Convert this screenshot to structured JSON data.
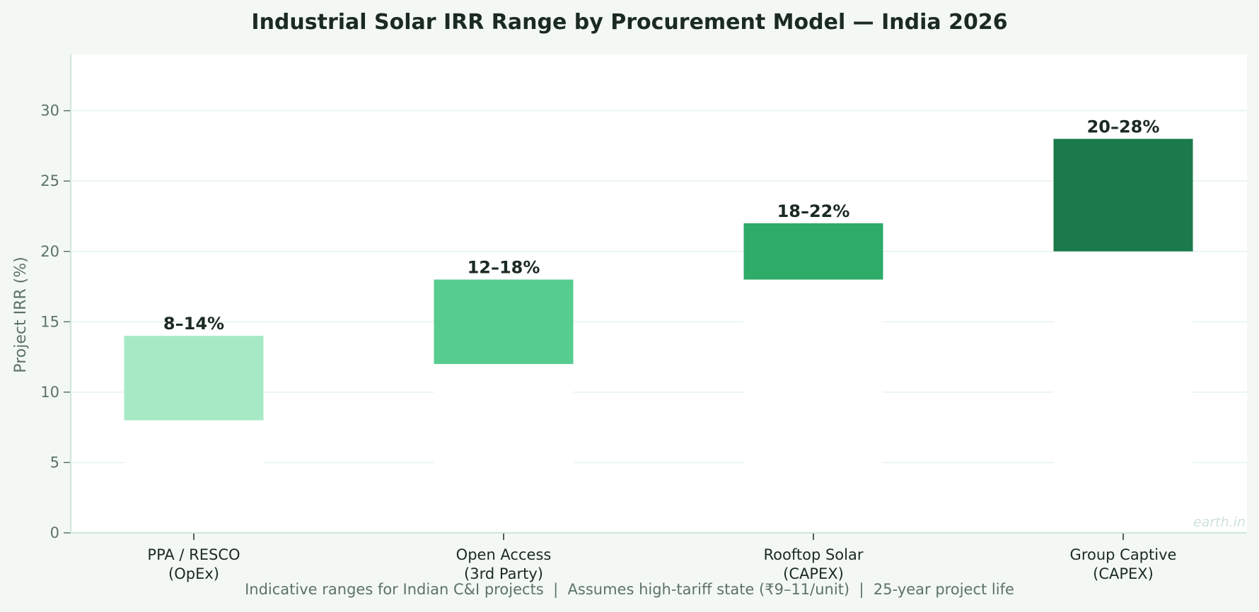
{
  "chart_data": {
    "type": "bar",
    "title": "Industrial Solar IRR Range by Procurement Model — India 2026",
    "ylabel": "Project IRR (%)",
    "xlabel": "",
    "ylim": [
      0,
      34
    ],
    "yticks": [
      0,
      5,
      10,
      15,
      20,
      25,
      30
    ],
    "grid": true,
    "categories": [
      [
        "PPA / RESCO",
        "(OpEx)"
      ],
      [
        "Open Access",
        "(3rd Party)"
      ],
      [
        "Rooftop Solar",
        "(CAPEX)"
      ],
      [
        "Group Captive",
        "(CAPEX)"
      ]
    ],
    "low": [
      8,
      12,
      18,
      20
    ],
    "high": [
      14,
      18,
      22,
      28
    ],
    "labels": [
      "8–14%",
      "12–18%",
      "18–22%",
      "20–28%"
    ],
    "colors": [
      "#a8e9c5",
      "#57cc8f",
      "#2eaa69",
      "#1b7a4b"
    ]
  },
  "footer": "Indicative ranges for Indian C&I projects  |  Assumes high-tariff state (₹9–11/unit)  |  25-year project life",
  "watermark": "earth.in"
}
